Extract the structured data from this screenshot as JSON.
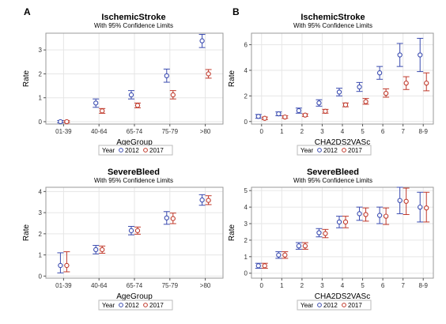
{
  "panel_letters": [
    "A",
    "B"
  ],
  "legend": {
    "label": "Year",
    "items": [
      "2012",
      "2017"
    ]
  },
  "colors": {
    "2012": "#3a4bb0",
    "2017": "#c0392b",
    "frame": "#9a9a9a",
    "grid": "#e6e6e6"
  },
  "chart_data": [
    {
      "type": "scatter",
      "subtype": "point-with-95pct-ci",
      "title": "IschemicStroke",
      "subtitle": "With 95% Confidence Limits",
      "xlabel": "AgeGroup",
      "ylabel": "Rate",
      "categories": [
        "01-39",
        "40-64",
        "65-74",
        "75-79",
        ">80"
      ],
      "ylim": [
        -0.1,
        3.7
      ],
      "yticks": [
        0,
        1,
        2,
        3
      ],
      "grid": true,
      "legend_position": "bottom",
      "series": [
        {
          "name": "2012",
          "values": [
            0.0,
            0.78,
            1.12,
            1.92,
            3.38
          ],
          "lower": [
            -0.05,
            0.6,
            0.95,
            1.65,
            3.1
          ],
          "upper": [
            0.05,
            0.95,
            1.3,
            2.2,
            3.65
          ]
        },
        {
          "name": "2017",
          "values": [
            0.0,
            0.45,
            0.68,
            1.12,
            2.0
          ],
          "lower": [
            -0.04,
            0.35,
            0.58,
            0.95,
            1.82
          ],
          "upper": [
            0.04,
            0.55,
            0.78,
            1.3,
            2.18
          ]
        }
      ]
    },
    {
      "type": "scatter",
      "subtype": "point-with-95pct-ci",
      "title": "IschemicStroke",
      "subtitle": "With 95% Confidence Limits",
      "xlabel": "CHA2DS2VASc",
      "ylabel": "Rate",
      "categories": [
        "0",
        "1",
        "2",
        "3",
        "4",
        "5",
        "6",
        "7",
        "8-9"
      ],
      "ylim": [
        -0.2,
        6.9
      ],
      "yticks": [
        0,
        2,
        4,
        6
      ],
      "grid": true,
      "legend_position": "bottom",
      "series": [
        {
          "name": "2012",
          "values": [
            0.4,
            0.6,
            0.85,
            1.45,
            2.3,
            2.7,
            3.8,
            5.2,
            5.2
          ],
          "lower": [
            0.25,
            0.45,
            0.65,
            1.2,
            2.0,
            2.35,
            3.3,
            4.3,
            3.9
          ],
          "upper": [
            0.55,
            0.75,
            1.05,
            1.7,
            2.6,
            3.05,
            4.3,
            6.1,
            6.5
          ]
        },
        {
          "name": "2017",
          "values": [
            0.25,
            0.35,
            0.5,
            0.8,
            1.3,
            1.55,
            2.2,
            3.0,
            3.0
          ],
          "lower": [
            0.15,
            0.25,
            0.4,
            0.65,
            1.15,
            1.35,
            1.9,
            2.5,
            2.4
          ],
          "upper": [
            0.35,
            0.45,
            0.6,
            0.95,
            1.45,
            1.8,
            2.55,
            3.5,
            3.8
          ]
        }
      ]
    },
    {
      "type": "scatter",
      "subtype": "point-with-95pct-ci",
      "title": "SevereBleed",
      "subtitle": "With 95% Confidence Limits",
      "xlabel": "AgeGroup",
      "ylabel": "Rate",
      "categories": [
        "01-39",
        "40-64",
        "65-74",
        "75-79",
        ">80"
      ],
      "ylim": [
        -0.1,
        4.2
      ],
      "yticks": [
        0,
        1,
        2,
        3,
        4
      ],
      "grid": true,
      "legend_position": "bottom",
      "series": [
        {
          "name": "2012",
          "values": [
            0.5,
            1.25,
            2.15,
            2.75,
            3.6
          ],
          "lower": [
            0.15,
            1.05,
            1.95,
            2.45,
            3.35
          ],
          "upper": [
            1.1,
            1.45,
            2.35,
            3.05,
            3.85
          ]
        },
        {
          "name": "2017",
          "values": [
            0.5,
            1.25,
            2.15,
            2.72,
            3.58
          ],
          "lower": [
            0.2,
            1.08,
            1.98,
            2.48,
            3.38
          ],
          "upper": [
            1.15,
            1.42,
            2.32,
            2.98,
            3.8
          ]
        }
      ]
    },
    {
      "type": "scatter",
      "subtype": "point-with-95pct-ci",
      "title": "SevereBleed",
      "subtitle": "With 95% Confidence Limits",
      "xlabel": "CHA2DS2VASc",
      "ylabel": "Rate",
      "categories": [
        "0",
        "1",
        "2",
        "3",
        "4",
        "5",
        "6",
        "7",
        "8-9"
      ],
      "ylim": [
        -0.3,
        5.2
      ],
      "yticks": [
        0,
        1,
        2,
        3,
        4,
        5
      ],
      "grid": true,
      "legend_position": "bottom",
      "series": [
        {
          "name": "2012",
          "values": [
            0.45,
            1.1,
            1.65,
            2.45,
            3.1,
            3.6,
            3.5,
            4.4,
            4.0
          ],
          "lower": [
            0.3,
            0.9,
            1.45,
            2.2,
            2.75,
            3.2,
            3.0,
            3.6,
            3.1
          ],
          "upper": [
            0.6,
            1.3,
            1.85,
            2.7,
            3.45,
            4.0,
            4.0,
            5.2,
            4.9
          ]
        },
        {
          "name": "2017",
          "values": [
            0.45,
            1.1,
            1.65,
            2.4,
            3.1,
            3.55,
            3.45,
            4.35,
            3.95
          ],
          "lower": [
            0.3,
            0.9,
            1.45,
            2.15,
            2.75,
            3.15,
            2.95,
            3.55,
            3.1
          ],
          "upper": [
            0.6,
            1.3,
            1.85,
            2.65,
            3.45,
            3.95,
            3.95,
            5.15,
            4.9
          ]
        }
      ]
    }
  ]
}
